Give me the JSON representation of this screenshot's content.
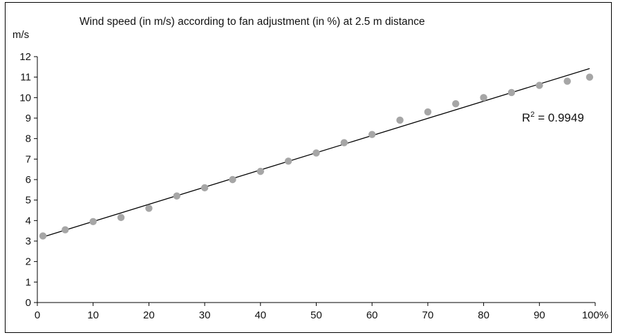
{
  "chart_data": {
    "type": "scatter",
    "title": "Wind speed (in m/s) according to fan adjustment (in %) at 2.5 m distance",
    "xlabel": "",
    "ylabel": "m/s",
    "xlim": [
      0,
      100
    ],
    "ylim": [
      0,
      12
    ],
    "x_ticks": [
      0,
      10,
      20,
      30,
      40,
      50,
      60,
      70,
      80,
      90,
      100
    ],
    "x_tick_labels": [
      "0",
      "10",
      "20",
      "30",
      "40",
      "50",
      "60",
      "70",
      "80",
      "90",
      "100%"
    ],
    "y_ticks": [
      0,
      1,
      2,
      3,
      4,
      5,
      6,
      7,
      8,
      9,
      10,
      11,
      12
    ],
    "y_tick_labels": [
      "0",
      "1",
      "2",
      "3",
      "4",
      "5",
      "6",
      "7",
      "8",
      "9",
      "10",
      "11",
      "12"
    ],
    "grid": false,
    "series": [
      {
        "x": [
          1,
          5,
          10,
          15,
          20,
          25,
          30,
          35,
          40,
          45,
          50,
          55,
          60,
          65,
          70,
          75,
          80,
          85,
          90,
          95,
          99
        ],
        "values": [
          3.25,
          3.55,
          3.95,
          4.15,
          4.6,
          5.2,
          5.6,
          6.0,
          6.4,
          6.9,
          7.3,
          7.8,
          8.2,
          8.9,
          9.3,
          9.7,
          10.0,
          10.25,
          10.6,
          10.8,
          11.0
        ],
        "color": "#a6a6a6"
      }
    ],
    "trendline": {
      "type": "linear",
      "x": [
        1,
        99
      ],
      "y": [
        3.2,
        11.42
      ],
      "color": "#000000"
    },
    "annotation": {
      "r2_prefix": "R",
      "r2_superscript": "2",
      "r2_value_text": " = 0.9949"
    }
  }
}
